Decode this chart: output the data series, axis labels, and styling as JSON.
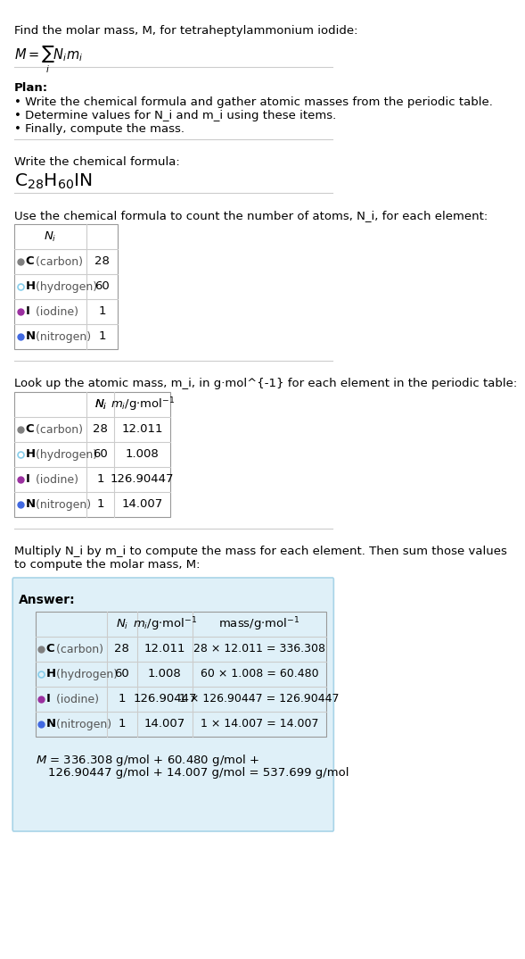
{
  "title_line1": "Find the molar mass, M, for tetraheptylammonium iodide:",
  "title_formula": "M = Σ N_i m_i",
  "plan_header": "Plan:",
  "plan_bullets": [
    "• Write the chemical formula and gather atomic masses from the periodic table.",
    "• Determine values for N_i and m_i using these items.",
    "• Finally, compute the mass."
  ],
  "formula_header": "Write the chemical formula:",
  "chemical_formula": "C_{28}H_{60}IN",
  "table1_header": "Use the chemical formula to count the number of atoms, N_i, for each element:",
  "table2_header": "Look up the atomic mass, m_i, in g·mol^{-1} for each element in the periodic table:",
  "table3_header": "Multiply N_i by m_i to compute the mass for each element. Then sum those values\nto compute the molar mass, M:",
  "elements": [
    "C (carbon)",
    "H (hydrogen)",
    "I (iodine)",
    "N (nitrogen)"
  ],
  "element_symbols": [
    "C",
    "H",
    "I",
    "N"
  ],
  "dot_colors": [
    "#808080",
    "#87ceeb",
    "#9b30a0",
    "#4169e1"
  ],
  "dot_filled": [
    true,
    false,
    true,
    true
  ],
  "N_i": [
    28,
    60,
    1,
    1
  ],
  "m_i": [
    "12.011",
    "1.008",
    "126.90447",
    "14.007"
  ],
  "mass_calc": [
    "28 × 12.011 = 336.308",
    "60 × 1.008 = 60.480",
    "1 × 126.90447 = 126.90447",
    "1 × 14.007 = 14.007"
  ],
  "answer_label": "Answer:",
  "final_eq_line1": "M = 336.308 g/mol + 60.480 g/mol +",
  "final_eq_line2": "126.90447 g/mol + 14.007 g/mol = 537.699 g/mol",
  "bg_color": "#ffffff",
  "answer_bg": "#dff0f8",
  "answer_border": "#a8d4e8",
  "table_border": "#cccccc",
  "text_color": "#000000",
  "font_size": 9.5
}
